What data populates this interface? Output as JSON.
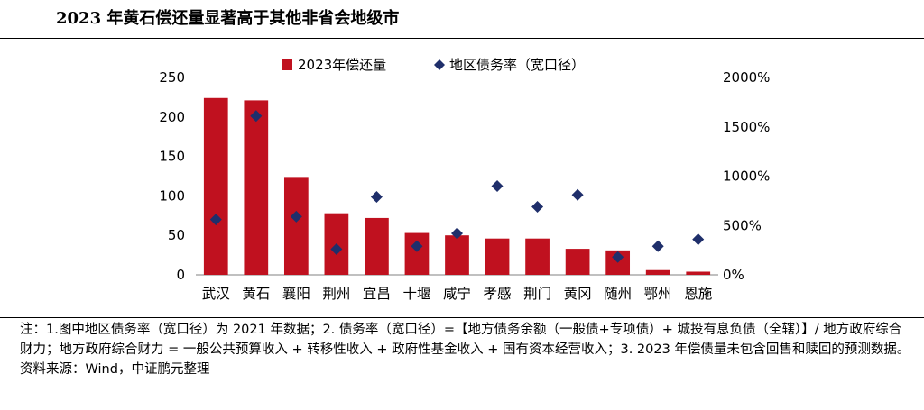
{
  "title": "2023 年黄石偿还量显著高于其他非省会地级市",
  "notes": {
    "note": "注：1.图中地区债务率（宽口径）为 2021 年数据；2. 债务率（宽口径）=【地方债务余额（一般债+专项债）+ 城投有息负债（全辖）】/ 地方政府综合财力；地方政府综合财力 = 一般公共预算收入 + 转移性收入 + 政府性基金收入 + 国有资本经营收入；3. 2023 年偿债量未包含回售和赎回的预测数据。",
    "source": "资料来源：Wind，中证鹏元整理"
  },
  "chart_data": {
    "type": "bar",
    "title": "",
    "categories": [
      "武汉",
      "黄石",
      "襄阳",
      "荆州",
      "宜昌",
      "十堰",
      "咸宁",
      "孝感",
      "荆门",
      "黄冈",
      "随州",
      "鄂州",
      "恩施"
    ],
    "series": [
      {
        "name": "2023年偿还量",
        "type": "bar",
        "axis": "left",
        "color": "#c0111f",
        "values": [
          224,
          221,
          124,
          78,
          72,
          53,
          50,
          46,
          46,
          33,
          31,
          6,
          4
        ]
      },
      {
        "name": "地区债务率（宽口径）",
        "type": "scatter",
        "axis": "right",
        "color": "#1f2f6b",
        "values": [
          560,
          1610,
          590,
          260,
          790,
          290,
          420,
          900,
          690,
          810,
          180,
          290,
          360
        ]
      }
    ],
    "y_left": {
      "min": 0,
      "max": 250,
      "ticks": [
        "0",
        "50",
        "100",
        "150",
        "200",
        "250"
      ]
    },
    "y_right": {
      "min": 0,
      "max": 2000,
      "ticks": [
        "0%",
        "500%",
        "1000%",
        "1500%",
        "2000%"
      ]
    },
    "legend_position": "top",
    "grid": false
  }
}
